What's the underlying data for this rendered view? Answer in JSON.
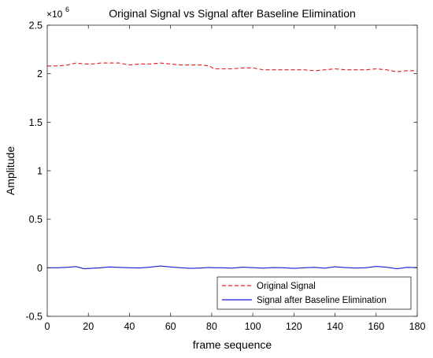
{
  "chart_data": {
    "type": "line",
    "title": "Original Signal vs Signal after Baseline Elimination",
    "xlabel": "frame sequence",
    "ylabel": "Amplitude",
    "y_exponent_label": "×10",
    "y_exponent": "6",
    "xlim": [
      0,
      180
    ],
    "ylim": [
      -0.5,
      2.5
    ],
    "x_ticks": [
      "0",
      "20",
      "40",
      "60",
      "80",
      "100",
      "120",
      "140",
      "160",
      "180"
    ],
    "y_ticks": [
      "-0.5",
      "0",
      "0.5",
      "1",
      "1.5",
      "2",
      "2.5"
    ],
    "grid": false,
    "legend_position": "bottom-right",
    "x": [
      0,
      5,
      10,
      14,
      18,
      22,
      26,
      30,
      35,
      40,
      45,
      50,
      55,
      60,
      65,
      70,
      75,
      79,
      81,
      85,
      90,
      95,
      100,
      105,
      110,
      115,
      120,
      125,
      130,
      135,
      140,
      145,
      150,
      155,
      160,
      165,
      170,
      175,
      180
    ],
    "series": [
      {
        "name": "Original Signal",
        "color": "#e8191c",
        "dash": "dashed",
        "values": [
          2.08,
          2.08,
          2.09,
          2.11,
          2.1,
          2.1,
          2.11,
          2.11,
          2.11,
          2.09,
          2.1,
          2.1,
          2.11,
          2.1,
          2.09,
          2.09,
          2.09,
          2.08,
          2.05,
          2.05,
          2.05,
          2.06,
          2.06,
          2.04,
          2.04,
          2.04,
          2.04,
          2.04,
          2.03,
          2.04,
          2.05,
          2.04,
          2.04,
          2.04,
          2.05,
          2.04,
          2.02,
          2.03,
          2.03
        ]
      },
      {
        "name": "Signal after Baseline Elimination",
        "color": "#1a1ad6",
        "dash": "solid",
        "values": [
          0.0,
          0.0,
          0.005,
          0.012,
          -0.01,
          -0.005,
          0.0,
          0.008,
          0.004,
          0.0,
          -0.002,
          0.006,
          0.018,
          0.008,
          0.0,
          -0.006,
          -0.002,
          0.003,
          0.0,
          0.0,
          -0.004,
          0.006,
          0.001,
          -0.004,
          0.002,
          0.0,
          -0.006,
          0.0,
          0.004,
          -0.004,
          0.01,
          0.002,
          -0.003,
          0.0,
          0.014,
          0.006,
          -0.01,
          0.004,
          0.002
        ]
      }
    ]
  }
}
